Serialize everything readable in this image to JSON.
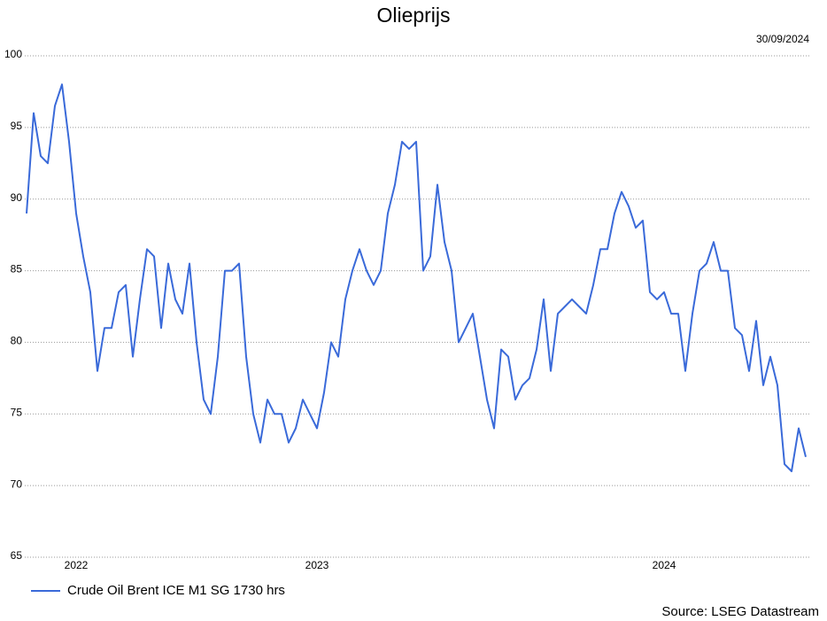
{
  "chart_data": {
    "type": "line",
    "title": "Olieprijs",
    "annotations": [
      "30/09/2024"
    ],
    "source": "Source: LSEG Datastream",
    "categories": [
      null,
      null,
      null,
      null,
      null,
      null,
      null,
      "2022",
      null,
      null,
      null,
      null,
      null,
      null,
      null,
      null,
      null,
      null,
      null,
      null,
      null,
      null,
      null,
      null,
      null,
      null,
      null,
      null,
      null,
      null,
      null,
      null,
      null,
      null,
      null,
      null,
      null,
      null,
      null,
      null,
      null,
      "2023",
      null,
      null,
      null,
      null,
      null,
      null,
      null,
      null,
      null,
      null,
      null,
      null,
      null,
      null,
      null,
      null,
      null,
      null,
      null,
      null,
      null,
      null,
      null,
      null,
      null,
      null,
      null,
      null,
      null,
      null,
      null,
      null,
      null,
      null,
      null,
      null,
      null,
      null,
      null,
      null,
      null,
      null,
      null,
      null,
      null,
      null,
      null,
      null,
      "2024",
      null,
      null,
      null,
      null,
      null,
      null,
      null,
      null,
      null,
      null,
      null,
      null,
      null,
      null,
      null,
      null,
      null,
      null,
      null,
      null
    ],
    "series": [
      {
        "name": "Crude Oil Brent ICE M1 SG 1730 hrs",
        "color": "#3a6ad9",
        "values": [
          89,
          96,
          93,
          92.5,
          96.5,
          98,
          94,
          89,
          86,
          83.5,
          78,
          81,
          81,
          83.5,
          84,
          79,
          83,
          86.5,
          86,
          81,
          85.5,
          83,
          82,
          85.5,
          80,
          76,
          75,
          79,
          85,
          85,
          85.5,
          79,
          75,
          73,
          76,
          75,
          75,
          73,
          74,
          76,
          75,
          74,
          76.5,
          80,
          79,
          83,
          85,
          86.5,
          85,
          84,
          85,
          89,
          91,
          94,
          93.5,
          94,
          85,
          86,
          91,
          87,
          85,
          80,
          81,
          82,
          79,
          76,
          74,
          79.5,
          79,
          76,
          77,
          77.5,
          79.5,
          83,
          78,
          82,
          82.5,
          83,
          82.5,
          82,
          84,
          86.5,
          86.5,
          89,
          90.5,
          89.5,
          88,
          88.5,
          83.5,
          83,
          83.5,
          82,
          82,
          78,
          82,
          85,
          85.5,
          87,
          85,
          85,
          81,
          80.5,
          78,
          81.5,
          77,
          79,
          77,
          71.5,
          71,
          74,
          72
        ]
      }
    ],
    "ylim": [
      65,
      100
    ],
    "yticks": [
      65,
      70,
      75,
      80,
      85,
      90,
      95,
      100
    ],
    "grid": true,
    "legend": "bottom-left"
  }
}
